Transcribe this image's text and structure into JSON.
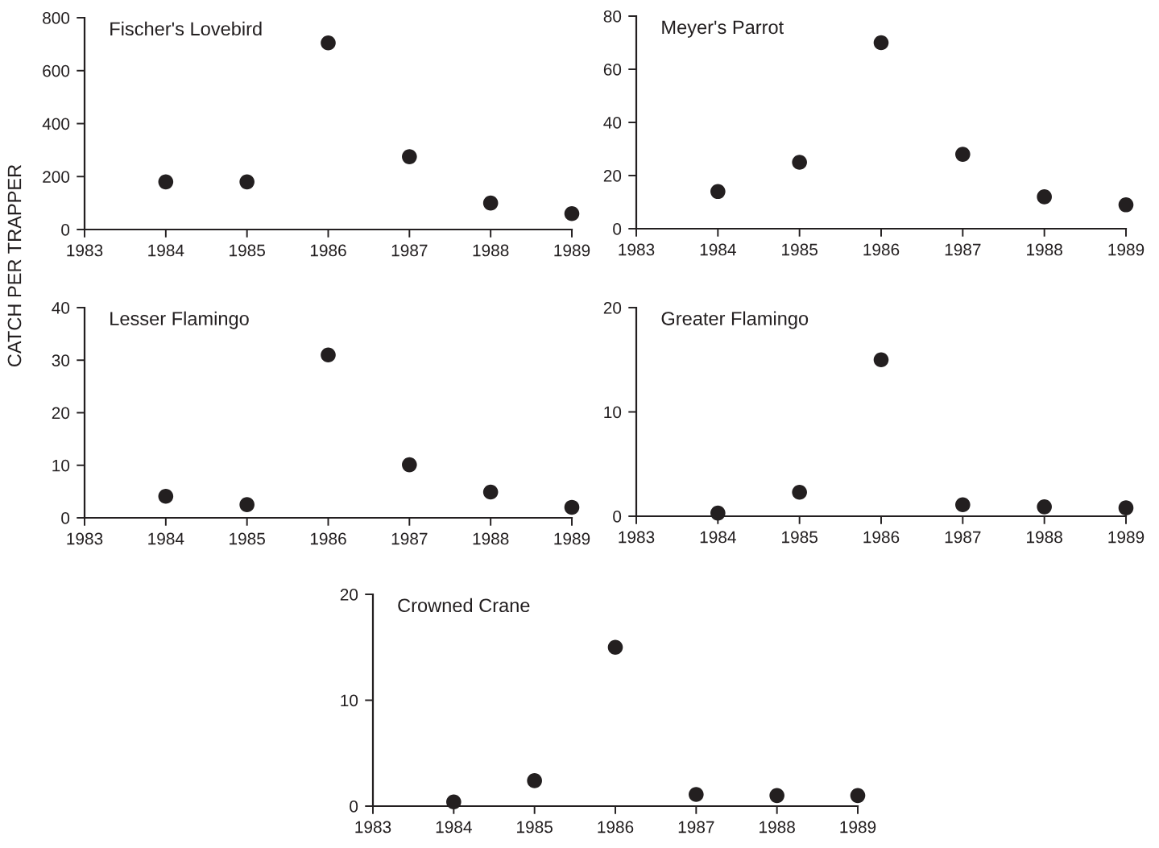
{
  "chart_data": [
    {
      "type": "scatter",
      "title": "Fischer's Lovebird",
      "ylabel": "CATCH PER TRAPPER",
      "x": [
        1984,
        1985,
        1986,
        1987,
        1988,
        1989
      ],
      "values": [
        180,
        180,
        705,
        275,
        100,
        60
      ],
      "color": "#231f20",
      "marker": "circle",
      "xlim": [
        1983,
        1989
      ],
      "xticks": [
        1983,
        1984,
        1985,
        1986,
        1987,
        1988,
        1989
      ],
      "ylim": [
        0,
        800
      ],
      "yticks": [
        0,
        200,
        400,
        600,
        800
      ],
      "grid": false
    },
    {
      "type": "scatter",
      "title": "Meyer's Parrot",
      "x": [
        1984,
        1985,
        1986,
        1987,
        1988,
        1989
      ],
      "values": [
        14,
        25,
        70,
        28,
        12,
        9
      ],
      "color": "#231f20",
      "marker": "circle",
      "xlim": [
        1983,
        1989
      ],
      "xticks": [
        1983,
        1984,
        1985,
        1986,
        1987,
        1988,
        1989
      ],
      "ylim": [
        0,
        80
      ],
      "yticks": [
        0,
        20,
        40,
        60,
        80
      ],
      "grid": false
    },
    {
      "type": "scatter",
      "title": "Lesser Flamingo",
      "x": [
        1984,
        1985,
        1986,
        1987,
        1988,
        1989
      ],
      "values": [
        4.1,
        2.5,
        31,
        10.1,
        4.9,
        2
      ],
      "color": "#231f20",
      "marker": "circle",
      "xlim": [
        1983,
        1989
      ],
      "xticks": [
        1983,
        1984,
        1985,
        1986,
        1987,
        1988,
        1989
      ],
      "ylim": [
        0,
        40
      ],
      "yticks": [
        0,
        10,
        20,
        30,
        40
      ],
      "grid": false
    },
    {
      "type": "scatter",
      "title": "Greater Flamingo",
      "x": [
        1984,
        1985,
        1986,
        1987,
        1988,
        1989
      ],
      "values": [
        0.3,
        2.3,
        15,
        1.1,
        0.9,
        0.8
      ],
      "color": "#231f20",
      "marker": "circle",
      "xlim": [
        1983,
        1989
      ],
      "xticks": [
        1983,
        1984,
        1985,
        1986,
        1987,
        1988,
        1989
      ],
      "ylim": [
        0,
        20
      ],
      "yticks": [
        0,
        10,
        20
      ],
      "grid": false
    },
    {
      "type": "scatter",
      "title": "Crowned Crane",
      "x": [
        1984,
        1985,
        1986,
        1987,
        1988,
        1989
      ],
      "values": [
        0.4,
        2.4,
        15,
        1.1,
        1.0,
        1.0
      ],
      "color": "#231f20",
      "marker": "circle",
      "xlim": [
        1983,
        1989
      ],
      "xticks": [
        1983,
        1984,
        1985,
        1986,
        1987,
        1988,
        1989
      ],
      "ylim": [
        0,
        20
      ],
      "yticks": [
        0,
        10,
        20
      ],
      "grid": false
    }
  ]
}
